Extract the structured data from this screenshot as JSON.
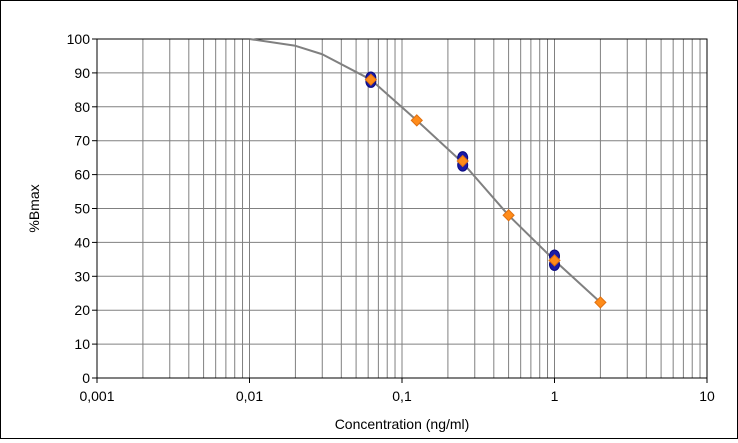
{
  "chart_data": {
    "type": "scatter",
    "xlabel": "Concentration (ng/ml)",
    "ylabel": "%Bmax",
    "x_scale": "log",
    "xlim": [
      0.001,
      10
    ],
    "ylim": [
      0,
      100
    ],
    "x_ticks": [
      "0,001",
      "0,01",
      "0,1",
      "1",
      "10"
    ],
    "y_ticks": [
      "0",
      "10",
      "20",
      "30",
      "40",
      "50",
      "60",
      "70",
      "80",
      "90",
      "100"
    ],
    "grid": true,
    "series": [
      {
        "marker": "circle",
        "color": "#1a1aa6",
        "points": [
          [
            0.0625,
            87.5
          ],
          [
            0.0625,
            88.5
          ],
          [
            0.25,
            62.8
          ],
          [
            0.25,
            65.0
          ],
          [
            1.0,
            33.5
          ],
          [
            1.0,
            36.0
          ]
        ]
      },
      {
        "marker": "diamond",
        "color": "#ff8c1a",
        "points": [
          [
            0.0625,
            88.0
          ],
          [
            0.125,
            76.0
          ],
          [
            0.25,
            64.0
          ],
          [
            0.5,
            48.0
          ],
          [
            1.0,
            34.7
          ],
          [
            2.0,
            22.3
          ]
        ]
      }
    ],
    "fit_curve": {
      "color": "#808080",
      "points": [
        [
          0.01,
          100.0
        ],
        [
          0.02,
          98.0
        ],
        [
          0.03,
          95.5
        ],
        [
          0.0625,
          88.0
        ],
        [
          0.125,
          76.0
        ],
        [
          0.25,
          63.5
        ],
        [
          0.5,
          48.0
        ],
        [
          1.0,
          34.7
        ],
        [
          2.0,
          22.3
        ]
      ]
    }
  }
}
